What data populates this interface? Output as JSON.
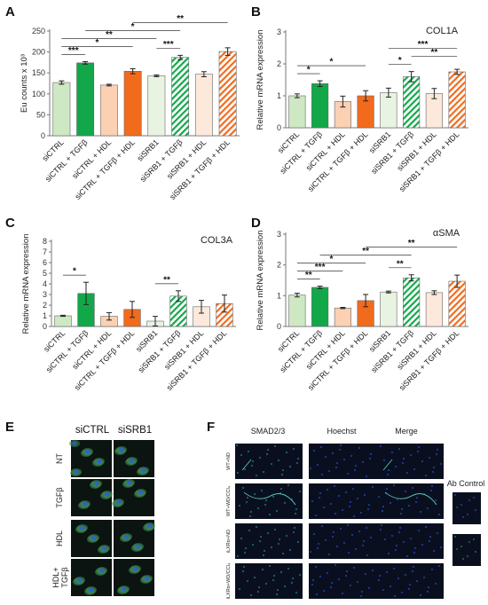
{
  "colors": {
    "ctrl_light_green": "#cfe8c4",
    "ctrl_dark_green": "#12a84a",
    "ctrl_light_orange": "#fbd0b3",
    "ctrl_dark_orange": "#f26b1d",
    "srb_light_green": "#e8f4e1",
    "srb_hatch_green": "#12a84a",
    "srb_light_orange": "#fde8dc",
    "srb_hatch_orange": "#f26b1d",
    "outline": "#666666",
    "micro_bg": "#0a0f1f"
  },
  "chart_data": [
    {
      "panel": "A",
      "type": "bar",
      "title": "",
      "ylabel": "Eu counts x 10³",
      "ylim": [
        0,
        250
      ],
      "yticks": [
        "0",
        "50",
        "100",
        "150",
        "200",
        "250"
      ],
      "categories": [
        "siCTRL",
        "siCTRL + TGFβ",
        "siCTRL + HDL",
        "siCTRL + TGFβ + HDL",
        "siSRB1",
        "siSRB1 + TGFβ",
        "siSRB1 + HDL",
        "siSRB1 + TGFβ + HDL"
      ],
      "values": [
        127,
        174,
        121,
        154,
        143,
        187,
        147,
        201
      ],
      "errors": [
        4,
        3,
        2,
        6,
        2,
        5,
        6,
        9
      ],
      "significance": [
        {
          "from": 0,
          "to": 1,
          "label": "***"
        },
        {
          "from": 0,
          "to": 3,
          "label": "*"
        },
        {
          "from": 0,
          "to": 4,
          "label": "**"
        },
        {
          "from": 1,
          "to": 5,
          "label": "*"
        },
        {
          "from": 3,
          "to": 7,
          "label": "**"
        },
        {
          "from": 4,
          "to": 5,
          "label": "***"
        }
      ]
    },
    {
      "panel": "B",
      "type": "bar",
      "title": "COL1A",
      "ylabel": "Relative mRNA expression",
      "ylim": [
        0,
        3
      ],
      "yticks": [
        "0",
        "1",
        "2",
        "3"
      ],
      "categories": [
        "siCTRL",
        "siCTRL + TGFβ",
        "siCTRL + HDL",
        "siCTRL + TGFβ + HDL",
        "siSRB1",
        "siSRB1 + TGFβ",
        "siSRB1 + HDL",
        "siSRB1 + TGFβ + HDL"
      ],
      "values": [
        1.0,
        1.38,
        0.82,
        1.0,
        1.1,
        1.6,
        1.07,
        1.75
      ],
      "errors": [
        0.06,
        0.09,
        0.17,
        0.16,
        0.14,
        0.16,
        0.16,
        0.08
      ],
      "significance": [
        {
          "from": 0,
          "to": 1,
          "label": "*"
        },
        {
          "from": 0,
          "to": 3,
          "label": "*"
        },
        {
          "from": 4,
          "to": 5,
          "label": "*"
        },
        {
          "from": 4,
          "to": 7,
          "label": "***"
        },
        {
          "from": 5,
          "to": 7,
          "label": "**"
        }
      ]
    },
    {
      "panel": "C",
      "type": "bar",
      "title": "COL3A",
      "ylabel": "Relative mRNA expression",
      "ylim": [
        0,
        8
      ],
      "yticks": [
        "0",
        "1",
        "2",
        "3",
        "4",
        "5",
        "6",
        "7",
        "8"
      ],
      "categories": [
        "siCTRL",
        "siCTRL + TGFβ",
        "siCTRL + HDL",
        "siCTRL + TGFβ + HDL",
        "siSRB1",
        "siSRB1 + TGFβ",
        "siSRB1 + HDL",
        "siSRB1 + TGFβ + HDL"
      ],
      "values": [
        1.0,
        3.1,
        0.95,
        1.6,
        0.5,
        2.85,
        1.85,
        2.15
      ],
      "errors": [
        0.05,
        1.05,
        0.35,
        0.75,
        0.45,
        0.5,
        0.6,
        0.8
      ],
      "significance": [
        {
          "from": 0,
          "to": 1,
          "label": "*"
        },
        {
          "from": 4,
          "to": 5,
          "label": "**"
        }
      ]
    },
    {
      "panel": "D",
      "type": "bar",
      "title": "αSMA",
      "ylabel": "Relative mRNA expression",
      "ylim": [
        0,
        3
      ],
      "yticks": [
        "0",
        "1",
        "2",
        "3"
      ],
      "categories": [
        "siCTRL",
        "siCTRL + TGFβ",
        "siCTRL + HDL",
        "siCTRL + TGFβ + HDL",
        "siSRB1",
        "siSRB1 + TGFβ",
        "siSRB1 + HDL",
        "siSRB1 + TGFβ + HDL"
      ],
      "values": [
        1.02,
        1.27,
        0.6,
        0.84,
        1.12,
        1.58,
        1.1,
        1.47
      ],
      "errors": [
        0.06,
        0.04,
        0.02,
        0.2,
        0.03,
        0.1,
        0.06,
        0.2
      ],
      "significance": [
        {
          "from": 0,
          "to": 1,
          "label": "**"
        },
        {
          "from": 0,
          "to": 2,
          "label": "***"
        },
        {
          "from": 0,
          "to": 3,
          "label": "*"
        },
        {
          "from": 1,
          "to": 5,
          "label": "**"
        },
        {
          "from": 3,
          "to": 7,
          "label": "**"
        },
        {
          "from": 4,
          "to": 5,
          "label": "**"
        }
      ]
    }
  ],
  "panels": {
    "a": "A",
    "b": "B",
    "c": "C",
    "d": "D",
    "e": "E",
    "f": "F"
  },
  "panel_e": {
    "columns": [
      "siCTRL",
      "siSRB1"
    ],
    "rows": [
      "NT",
      "TGFβ",
      "HDL",
      "HDL+ TGFβ"
    ],
    "row_lines": [
      [
        "NT"
      ],
      [
        "TGFβ"
      ],
      [
        "HDL"
      ],
      [
        "HDL+",
        "TGFβ"
      ]
    ]
  },
  "panel_f": {
    "columns": [
      "SMAD2/3",
      "Hoechst",
      "Merge"
    ],
    "rows": [
      "WT+ND",
      "WT+WD/CCl₄",
      "iLXRα+ND",
      "iLXRα+WD/CCl₄"
    ],
    "ab_control": "Ab Control"
  }
}
